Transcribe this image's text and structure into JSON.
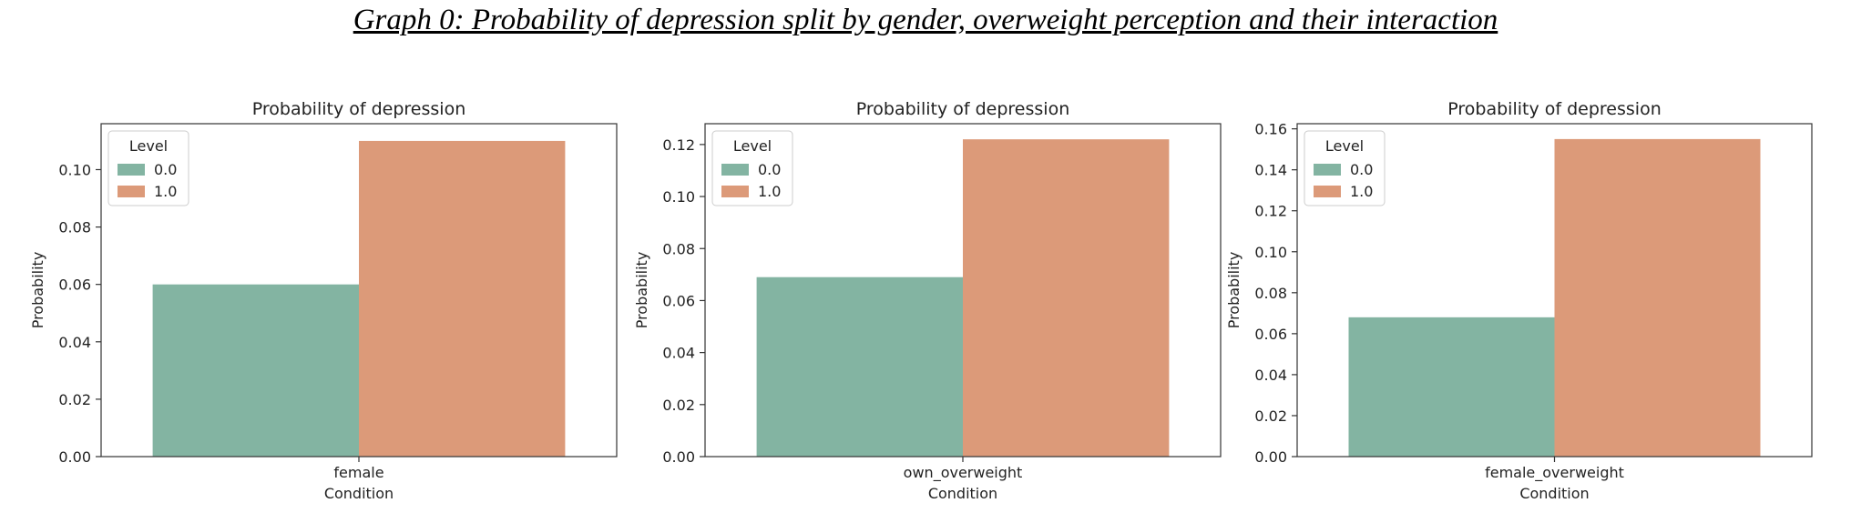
{
  "figure_title": "Graph 0: Probability of depression split by gender, overweight perception and their interaction",
  "colors": {
    "level_0": "#83b4a2",
    "level_1": "#dc9a79"
  },
  "chart_data": [
    {
      "type": "bar",
      "title": "Probability of depression",
      "xlabel": "Condition",
      "ylabel": "Probability",
      "categories": [
        "female"
      ],
      "ylim": [
        0,
        0.116
      ],
      "yticks": [
        0.0,
        0.02,
        0.04,
        0.06,
        0.08,
        0.1
      ],
      "ytick_labels": [
        "0.00",
        "0.02",
        "0.04",
        "0.06",
        "0.08",
        "0.10"
      ],
      "legend": {
        "title": "Level",
        "position": "top-left"
      },
      "grid": false,
      "series": [
        {
          "name": "0.0",
          "values": [
            0.06
          ]
        },
        {
          "name": "1.0",
          "values": [
            0.11
          ]
        }
      ]
    },
    {
      "type": "bar",
      "title": "Probability of depression",
      "xlabel": "Condition",
      "ylabel": "Probability",
      "categories": [
        "own_overweight"
      ],
      "ylim": [
        0,
        0.128
      ],
      "yticks": [
        0.0,
        0.02,
        0.04,
        0.06,
        0.08,
        0.1,
        0.12
      ],
      "ytick_labels": [
        "0.00",
        "0.02",
        "0.04",
        "0.06",
        "0.08",
        "0.10",
        "0.12"
      ],
      "legend": {
        "title": "Level",
        "position": "top-left"
      },
      "grid": false,
      "series": [
        {
          "name": "0.0",
          "values": [
            0.069
          ]
        },
        {
          "name": "1.0",
          "values": [
            0.122
          ]
        }
      ]
    },
    {
      "type": "bar",
      "title": "Probability of depression",
      "xlabel": "Condition",
      "ylabel": "Probability",
      "categories": [
        "female_overweight"
      ],
      "ylim": [
        0,
        0.1625
      ],
      "yticks": [
        0.0,
        0.02,
        0.04,
        0.06,
        0.08,
        0.1,
        0.12,
        0.14,
        0.16
      ],
      "ytick_labels": [
        "0.00",
        "0.02",
        "0.04",
        "0.06",
        "0.08",
        "0.10",
        "0.12",
        "0.14",
        "0.16"
      ],
      "legend": {
        "title": "Level",
        "position": "top-left"
      },
      "grid": false,
      "series": [
        {
          "name": "0.0",
          "values": [
            0.068
          ]
        },
        {
          "name": "1.0",
          "values": [
            0.155
          ]
        }
      ]
    }
  ]
}
